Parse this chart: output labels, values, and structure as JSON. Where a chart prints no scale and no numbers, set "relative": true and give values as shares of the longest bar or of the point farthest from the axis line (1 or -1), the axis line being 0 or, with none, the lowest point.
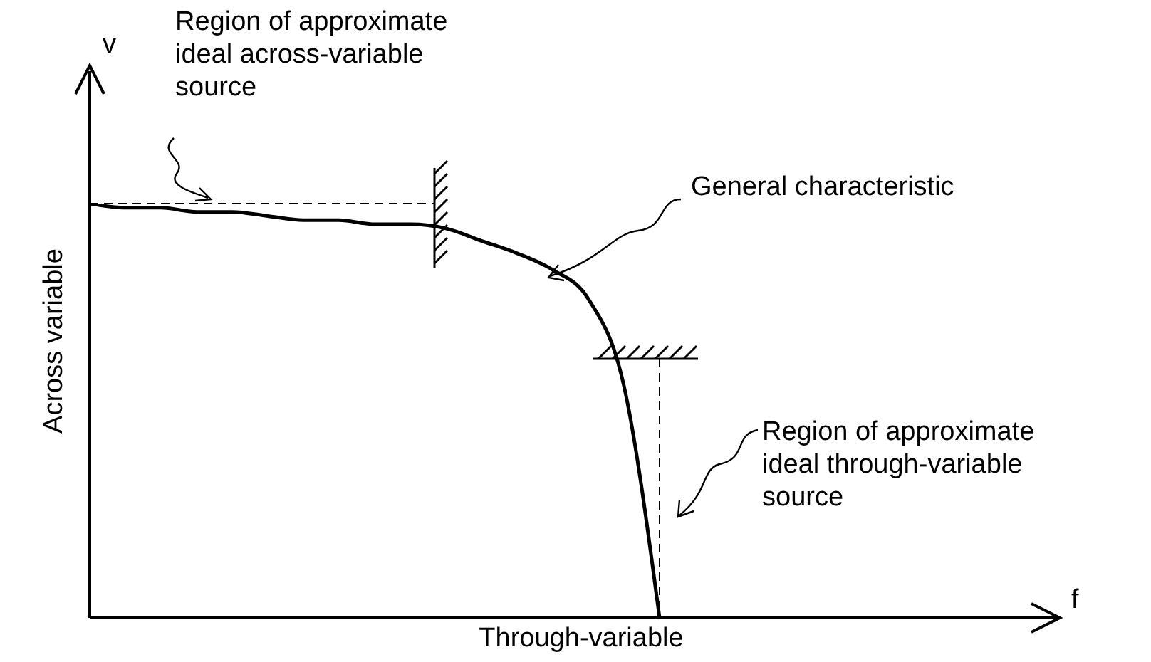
{
  "chart_data": {
    "type": "line",
    "relative": true,
    "xlabel": "Through-variable",
    "ylabel": "Across variable",
    "annotations": [
      "Region of approximate ideal across-variable source",
      "General characteristic",
      "Region of approximate ideal through-variable source",
      "v",
      "f"
    ],
    "categories": [
      null,
      null,
      null,
      null,
      null,
      null,
      null,
      null,
      null,
      null,
      null,
      null,
      null,
      null,
      null,
      null,
      null,
      null,
      null,
      null,
      null,
      null,
      null,
      null,
      null,
      null,
      null
    ],
    "series": [
      {
        "color": "#000000",
        "values": [
          1.0,
          0.99,
          0.99,
          0.98,
          0.98,
          0.97,
          0.96,
          0.96,
          0.95,
          0.95,
          0.94,
          0.91,
          0.88,
          0.84,
          0.77,
          0.56,
          0.0,
          null,
          null,
          null,
          null,
          null,
          null,
          null,
          null,
          null,
          null
        ]
      }
    ],
    "marker": "none",
    "line_style": "solid"
  }
}
